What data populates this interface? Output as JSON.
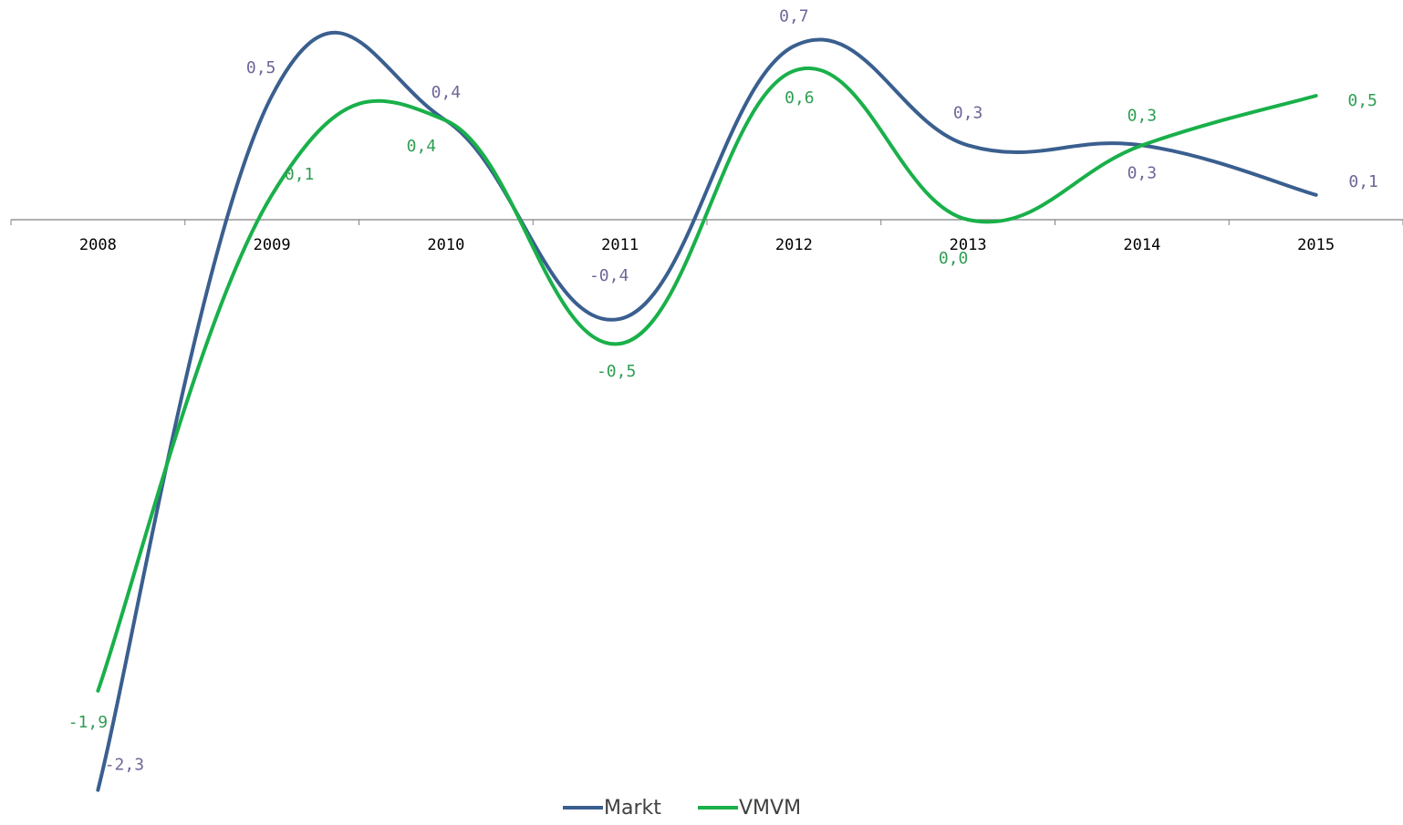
{
  "chart_data": {
    "type": "line",
    "smooth": true,
    "title": "",
    "xlabel": "",
    "ylabel": "",
    "categories": [
      "2008",
      "2009",
      "2010",
      "2011",
      "2012",
      "2013",
      "2014",
      "2015"
    ],
    "ylim": [
      -2.4,
      0.8
    ],
    "grid": false,
    "legend": "bottom-center",
    "series": [
      {
        "name": "Markt",
        "color": "#3A5F8F",
        "label_color": "#6E6698",
        "values": [
          -2.3,
          0.5,
          0.4,
          -0.4,
          0.7,
          0.3,
          0.3,
          0.1
        ],
        "labels": [
          "-2,3",
          "0,5",
          "0,4",
          "-0,4",
          "0,7",
          "0,3",
          "0,3",
          "0,1"
        ]
      },
      {
        "name": "VMVM",
        "color": "#19B04A",
        "label_color": "#2E9E52",
        "values": [
          -1.9,
          0.1,
          0.4,
          -0.5,
          0.6,
          0.0,
          0.3,
          0.5
        ],
        "labels": [
          "-1,9",
          "0,1",
          "0,4",
          "-0,5",
          "0,6",
          "0,0",
          "0,3",
          "0,5"
        ]
      }
    ]
  }
}
